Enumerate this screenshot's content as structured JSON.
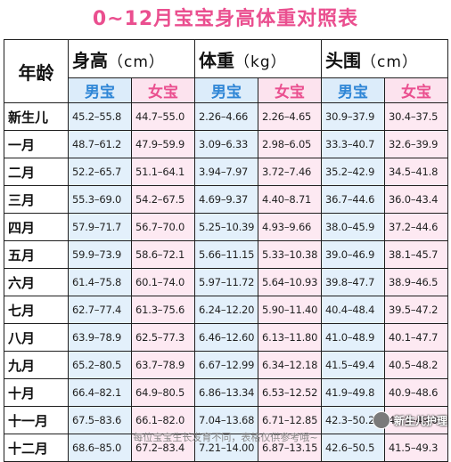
{
  "title": "0~12月宝宝身高体重对照表",
  "headers": {
    "age": "年龄",
    "height": {
      "label": "身高",
      "unit": "（cm）"
    },
    "weight": {
      "label": "体重",
      "unit": "（kg）"
    },
    "head": {
      "label": "头围",
      "unit": "（cm）"
    },
    "boy": "男宝",
    "girl": "女宝"
  },
  "rows": [
    {
      "age": "新生儿",
      "h_boy": "45.2–55.8",
      "h_girl": "44.7–55.0",
      "w_boy": "2.26–4.66",
      "w_girl": "2.26–4.65",
      "hc_boy": "30.9–37.9",
      "hc_girl": "30.4–37.5"
    },
    {
      "age": "一月",
      "h_boy": "48.7–61.2",
      "h_girl": "47.9–59.9",
      "w_boy": "3.09–6.33",
      "w_girl": "2.98–6.05",
      "hc_boy": "33.3–40.7",
      "hc_girl": "32.6–39.9"
    },
    {
      "age": "二月",
      "h_boy": "52.2–65.7",
      "h_girl": "51.1–64.1",
      "w_boy": "3.94–7.97",
      "w_girl": "3.72–7.46",
      "hc_boy": "35.2–42.9",
      "hc_girl": "34.5–41.8"
    },
    {
      "age": "三月",
      "h_boy": "55.3–69.0",
      "h_girl": "54.2–67.5",
      "w_boy": "4.69–9.37",
      "w_girl": "4.40–8.71",
      "hc_boy": "36.7–44.6",
      "hc_girl": "36.0–43.4"
    },
    {
      "age": "四月",
      "h_boy": "57.9–71.7",
      "h_girl": "56.7–70.0",
      "w_boy": "5.25–10.39",
      "w_girl": "4.93–9.66",
      "hc_boy": "38.0–45.9",
      "hc_girl": "37.2–44.6"
    },
    {
      "age": "五月",
      "h_boy": "59.9–73.9",
      "h_girl": "58.6–72.1",
      "w_boy": "5.66–11.15",
      "w_girl": "5.33–10.38",
      "hc_boy": "39.0–46.9",
      "hc_girl": "38.1–45.7"
    },
    {
      "age": "六月",
      "h_boy": "61.4–75.8",
      "h_girl": "60.1–74.0",
      "w_boy": "5.97–11.72",
      "w_girl": "5.64–10.93",
      "hc_boy": "39.8–47.7",
      "hc_girl": "38.9–46.5"
    },
    {
      "age": "七月",
      "h_boy": "62.7–77.4",
      "h_girl": "61.3–75.6",
      "w_boy": "6.24–12.20",
      "w_girl": "5.90–11.40",
      "hc_boy": "40.4–48.4",
      "hc_girl": "39.5–47.2"
    },
    {
      "age": "八月",
      "h_boy": "63.9–78.9",
      "h_girl": "62.5–77.3",
      "w_boy": "6.46–12.60",
      "w_girl": "6.13–11.80",
      "hc_boy": "41.0–48.9",
      "hc_girl": "40.1–47.7"
    },
    {
      "age": "九月",
      "h_boy": "65.2–80.5",
      "h_girl": "63.7–78.9",
      "w_boy": "6.67–12.99",
      "w_girl": "6.34–12.18",
      "hc_boy": "41.5–49.4",
      "hc_girl": "40.5–48.2"
    },
    {
      "age": "十月",
      "h_boy": "66.4–82.1",
      "h_girl": "64.9–80.5",
      "w_boy": "6.86–13.34",
      "w_girl": "6.53–12.52",
      "hc_boy": "41.9–49.8",
      "hc_girl": "40.9–48.6"
    },
    {
      "age": "十一月",
      "h_boy": "67.5–83.6",
      "h_girl": "66.1–82.0",
      "w_boy": "7.04–13.68",
      "w_girl": "6.71–12.85",
      "hc_boy": "42.3–50.2",
      "hc_girl": "41.3–49.0"
    },
    {
      "age": "十二月",
      "h_boy": "68.6–85.0",
      "h_girl": "67.2–83.4",
      "w_boy": "7.21–14.00",
      "w_girl": "6.87–13.15",
      "hc_boy": "42.6–50.5",
      "hc_girl": "41.5–49.3"
    }
  ],
  "footer": "每位宝宝生长发育不同，表格仅供参考哦~",
  "watermark": "新生儿护理",
  "colors": {
    "title": "#ea4f8f",
    "boy": "#2f86d6",
    "girl": "#ea4f8f",
    "boy_bg": "#e3f0fb",
    "girl_bg": "#fde9f2"
  }
}
